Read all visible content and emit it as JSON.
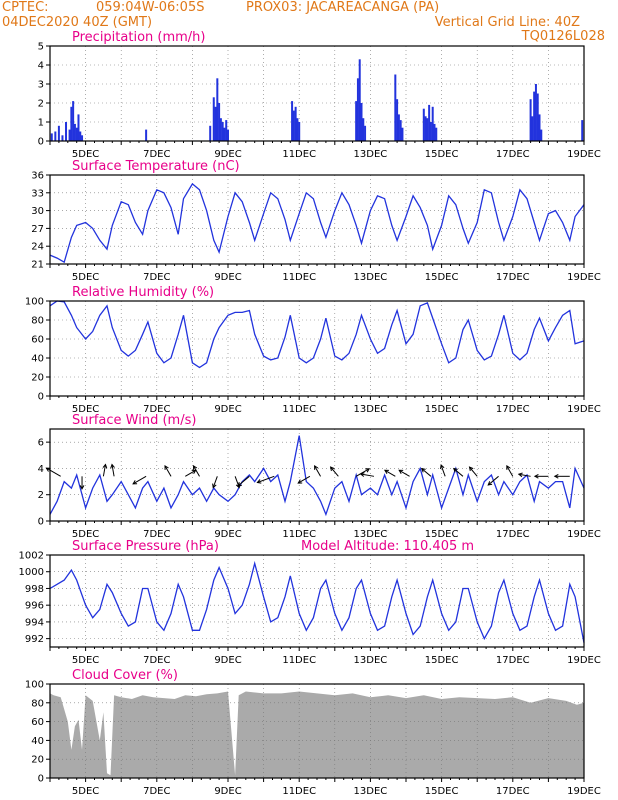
{
  "header": {
    "line1_left": "CPTEC:",
    "line1_coords": "059:04W-06:05S",
    "line1_station": "PROX03: JACAREACANGA (PA)",
    "line2_left": "04DEC2020 40Z (GMT)",
    "line2_right": "Vertical Grid Line: 40Z",
    "line3_right": "TQ0126L028"
  },
  "colors": {
    "header": "#e07818",
    "panel_title": "#e8008a",
    "series": "#2233dd",
    "cloud": "#aaaaaa"
  },
  "chart_data": [
    {
      "type": "bar",
      "title": "Precipitation (mm/h)",
      "ylim": [
        0,
        5
      ],
      "yticks": [
        "0",
        "1",
        "2",
        "3",
        "4",
        "5"
      ],
      "x_range_days": [
        4,
        19
      ],
      "xticks": [
        "5DEC",
        "7DEC",
        "9DEC",
        "11DEC",
        "13DEC",
        "15DEC",
        "17DEC",
        "19DEC"
      ],
      "grid": true,
      "x": [
        4.05,
        4.15,
        4.25,
        4.35,
        4.45,
        4.55,
        4.6,
        4.65,
        4.7,
        4.75,
        4.8,
        4.85,
        4.9,
        6.7,
        8.5,
        8.6,
        8.65,
        8.7,
        8.75,
        8.8,
        8.85,
        8.9,
        8.95,
        9.0,
        10.8,
        10.85,
        10.9,
        10.95,
        11.0,
        12.6,
        12.65,
        12.7,
        12.75,
        12.8,
        12.85,
        13.7,
        13.75,
        13.8,
        13.85,
        13.9,
        14.5,
        14.55,
        14.6,
        14.65,
        14.7,
        14.75,
        14.8,
        14.85,
        17.5,
        17.55,
        17.6,
        17.65,
        17.7,
        17.75,
        17.8,
        18.95
      ],
      "values": [
        0.4,
        0.5,
        0.8,
        0.3,
        1.0,
        0.6,
        1.8,
        2.1,
        0.9,
        0.7,
        1.4,
        0.5,
        0.3,
        0.6,
        0.8,
        2.3,
        1.8,
        3.3,
        2.0,
        1.2,
        1.0,
        0.7,
        1.1,
        0.6,
        2.1,
        1.6,
        1.8,
        1.2,
        1.0,
        2.1,
        3.3,
        4.3,
        2.0,
        1.2,
        0.8,
        3.5,
        2.2,
        1.4,
        1.1,
        0.7,
        1.7,
        1.3,
        1.2,
        1.9,
        1.0,
        1.8,
        0.9,
        0.7,
        2.2,
        1.3,
        2.6,
        3.0,
        2.5,
        1.4,
        0.6,
        1.1
      ]
    },
    {
      "type": "line",
      "title": "Surface Temperature (nC)",
      "ylim": [
        21,
        36
      ],
      "yticks": [
        "21",
        "24",
        "27",
        "30",
        "33",
        "36"
      ],
      "x_range_days": [
        4,
        19
      ],
      "xticks": [
        "5DEC",
        "7DEC",
        "9DEC",
        "11DEC",
        "13DEC",
        "15DEC",
        "17DEC",
        "19DEC"
      ],
      "grid": true,
      "x": [
        4.0,
        4.2,
        4.4,
        4.6,
        4.75,
        5.0,
        5.2,
        5.4,
        5.6,
        5.75,
        6.0,
        6.2,
        6.4,
        6.6,
        6.75,
        7.0,
        7.2,
        7.4,
        7.6,
        7.75,
        8.0,
        8.2,
        8.4,
        8.6,
        8.75,
        9.0,
        9.2,
        9.4,
        9.6,
        9.75,
        10.0,
        10.2,
        10.4,
        10.6,
        10.75,
        11.0,
        11.2,
        11.4,
        11.6,
        11.75,
        12.0,
        12.2,
        12.4,
        12.6,
        12.75,
        13.0,
        13.2,
        13.4,
        13.6,
        13.75,
        14.0,
        14.2,
        14.4,
        14.6,
        14.75,
        15.0,
        15.2,
        15.4,
        15.6,
        15.75,
        16.0,
        16.2,
        16.4,
        16.6,
        16.75,
        17.0,
        17.2,
        17.4,
        17.6,
        17.75,
        18.0,
        18.2,
        18.4,
        18.6,
        18.75,
        19.0
      ],
      "values": [
        22.5,
        22.0,
        21.3,
        25.5,
        27.5,
        28.0,
        27.0,
        25.0,
        23.5,
        27.5,
        31.5,
        31.0,
        28.0,
        26.0,
        30.0,
        33.5,
        33.0,
        30.5,
        26.0,
        32.0,
        34.5,
        33.5,
        30.0,
        25.0,
        23.0,
        29.0,
        33.0,
        31.5,
        28.0,
        25.0,
        29.5,
        33.0,
        32.0,
        28.5,
        25.0,
        29.5,
        33.0,
        32.0,
        28.0,
        25.5,
        30.0,
        33.0,
        31.0,
        27.5,
        24.5,
        30.0,
        32.5,
        32.0,
        27.5,
        25.0,
        29.0,
        32.5,
        30.5,
        27.5,
        23.5,
        27.5,
        32.5,
        31.0,
        27.0,
        24.5,
        28.0,
        33.5,
        33.0,
        28.0,
        25.0,
        29.0,
        33.5,
        32.0,
        28.0,
        25.0,
        29.5,
        30.0,
        28.0,
        25.0,
        29.0,
        31.0
      ]
    },
    {
      "type": "line",
      "title": "Relative Humidity (%)",
      "ylim": [
        0,
        100
      ],
      "yticks": [
        "0",
        "20",
        "40",
        "60",
        "80",
        "100"
      ],
      "x_range_days": [
        4,
        19
      ],
      "xticks": [
        "5DEC",
        "7DEC",
        "9DEC",
        "11DEC",
        "13DEC",
        "15DEC",
        "17DEC",
        "19DEC"
      ],
      "grid": true,
      "x": [
        4.0,
        4.2,
        4.4,
        4.6,
        4.75,
        5.0,
        5.2,
        5.4,
        5.6,
        5.75,
        6.0,
        6.2,
        6.4,
        6.6,
        6.75,
        7.0,
        7.2,
        7.4,
        7.6,
        7.75,
        8.0,
        8.2,
        8.4,
        8.6,
        8.75,
        9.0,
        9.2,
        9.4,
        9.6,
        9.75,
        10.0,
        10.2,
        10.4,
        10.6,
        10.75,
        11.0,
        11.2,
        11.4,
        11.6,
        11.75,
        12.0,
        12.2,
        12.4,
        12.6,
        12.75,
        13.0,
        13.2,
        13.4,
        13.6,
        13.75,
        14.0,
        14.2,
        14.4,
        14.6,
        14.75,
        15.0,
        15.2,
        15.4,
        15.6,
        15.75,
        16.0,
        16.2,
        16.4,
        16.6,
        16.75,
        17.0,
        17.2,
        17.4,
        17.6,
        17.75,
        18.0,
        18.2,
        18.4,
        18.6,
        18.75,
        19.0
      ],
      "values": [
        95,
        100,
        99,
        85,
        72,
        60,
        68,
        85,
        95,
        72,
        48,
        42,
        48,
        65,
        78,
        45,
        35,
        40,
        65,
        85,
        35,
        30,
        35,
        60,
        72,
        85,
        88,
        88,
        90,
        65,
        42,
        38,
        40,
        62,
        85,
        40,
        35,
        40,
        60,
        82,
        42,
        38,
        45,
        65,
        85,
        60,
        45,
        50,
        75,
        90,
        55,
        65,
        95,
        98,
        82,
        55,
        35,
        40,
        70,
        80,
        48,
        38,
        42,
        65,
        85,
        45,
        38,
        45,
        70,
        82,
        58,
        72,
        85,
        90,
        55,
        58
      ]
    },
    {
      "type": "line",
      "title": "Surface Wind (m/s)",
      "ylim": [
        0,
        7
      ],
      "yticks": [
        "0",
        "2",
        "4",
        "6"
      ],
      "x_range_days": [
        4,
        19
      ],
      "xticks": [
        "5DEC",
        "7DEC",
        "9DEC",
        "11DEC",
        "13DEC",
        "15DEC",
        "17DEC",
        "19DEC"
      ],
      "grid": true,
      "x": [
        4.0,
        4.2,
        4.4,
        4.6,
        4.75,
        5.0,
        5.2,
        5.4,
        5.6,
        5.75,
        6.0,
        6.2,
        6.4,
        6.6,
        6.75,
        7.0,
        7.2,
        7.4,
        7.6,
        7.75,
        8.0,
        8.2,
        8.4,
        8.6,
        8.75,
        9.0,
        9.2,
        9.4,
        9.6,
        9.75,
        10.0,
        10.2,
        10.4,
        10.6,
        10.75,
        11.0,
        11.2,
        11.4,
        11.6,
        11.75,
        12.0,
        12.2,
        12.4,
        12.6,
        12.75,
        13.0,
        13.2,
        13.4,
        13.6,
        13.75,
        14.0,
        14.2,
        14.4,
        14.6,
        14.75,
        15.0,
        15.2,
        15.4,
        15.6,
        15.75,
        16.0,
        16.2,
        16.4,
        16.6,
        16.75,
        17.0,
        17.2,
        17.4,
        17.6,
        17.75,
        18.0,
        18.2,
        18.4,
        18.6,
        18.75,
        19.0
      ],
      "values": [
        0.5,
        1.5,
        3.0,
        2.5,
        3.5,
        1.0,
        2.5,
        3.5,
        1.5,
        2.0,
        3.0,
        2.0,
        1.0,
        2.5,
        3.0,
        1.5,
        2.5,
        1.0,
        2.0,
        3.0,
        2.0,
        2.5,
        1.5,
        2.5,
        2.0,
        1.5,
        2.0,
        3.0,
        3.5,
        3.0,
        4.0,
        3.0,
        3.5,
        1.5,
        3.0,
        6.5,
        3.0,
        2.5,
        1.5,
        0.5,
        2.5,
        3.0,
        1.5,
        3.5,
        2.0,
        2.5,
        2.0,
        3.5,
        2.0,
        3.0,
        1.0,
        3.0,
        4.0,
        2.0,
        3.5,
        1.0,
        2.5,
        4.0,
        2.0,
        3.5,
        1.5,
        3.0,
        3.5,
        2.0,
        3.0,
        2.0,
        3.0,
        3.5,
        1.5,
        3.0,
        2.5,
        3.0,
        3.0,
        1.0,
        4.0,
        2.5
      ],
      "arrows": [
        {
          "day": 4.3,
          "dir_deg": 300,
          "speed": 3.5
        },
        {
          "day": 4.9,
          "dir_deg": 180,
          "speed": 2.2
        },
        {
          "day": 5.5,
          "dir_deg": 10,
          "speed": 2.0
        },
        {
          "day": 5.8,
          "dir_deg": 350,
          "speed": 2.0
        },
        {
          "day": 6.7,
          "dir_deg": 240,
          "speed": 3.0
        },
        {
          "day": 7.4,
          "dir_deg": 330,
          "speed": 2.0
        },
        {
          "day": 7.8,
          "dir_deg": 60,
          "speed": 2.0
        },
        {
          "day": 8.2,
          "dir_deg": 330,
          "speed": 2.0
        },
        {
          "day": 8.7,
          "dir_deg": 200,
          "speed": 2.0
        },
        {
          "day": 9.2,
          "dir_deg": 160,
          "speed": 2.0
        },
        {
          "day": 9.6,
          "dir_deg": 230,
          "speed": 3.0
        },
        {
          "day": 10.3,
          "dir_deg": 250,
          "speed": 4.0
        },
        {
          "day": 11.3,
          "dir_deg": 240,
          "speed": 2.5
        },
        {
          "day": 11.6,
          "dir_deg": 330,
          "speed": 2.0
        },
        {
          "day": 12.1,
          "dir_deg": 320,
          "speed": 2.0
        },
        {
          "day": 12.6,
          "dir_deg": 60,
          "speed": 3.0
        },
        {
          "day": 13.1,
          "dir_deg": 280,
          "speed": 2.5
        },
        {
          "day": 13.7,
          "dir_deg": 300,
          "speed": 2.0
        },
        {
          "day": 14.1,
          "dir_deg": 300,
          "speed": 2.0
        },
        {
          "day": 14.7,
          "dir_deg": 310,
          "speed": 2.0
        },
        {
          "day": 15.1,
          "dir_deg": 340,
          "speed": 2.0
        },
        {
          "day": 15.6,
          "dir_deg": 310,
          "speed": 2.0
        },
        {
          "day": 16.0,
          "dir_deg": 320,
          "speed": 2.0
        },
        {
          "day": 16.6,
          "dir_deg": 230,
          "speed": 2.5
        },
        {
          "day": 17.0,
          "dir_deg": 330,
          "speed": 2.0
        },
        {
          "day": 17.5,
          "dir_deg": 280,
          "speed": 2.0
        },
        {
          "day": 18.0,
          "dir_deg": 270,
          "speed": 2.5
        },
        {
          "day": 18.6,
          "dir_deg": 270,
          "speed": 3.0
        }
      ]
    },
    {
      "type": "line",
      "title": "Surface Pressure (hPa)",
      "annotation": "Model Altitude: 110.405 m",
      "ylim": [
        991,
        1002
      ],
      "yticks": [
        "992",
        "994",
        "996",
        "998",
        "1000",
        "1002"
      ],
      "x_range_days": [
        4,
        19
      ],
      "xticks": [
        "5DEC",
        "7DEC",
        "9DEC",
        "11DEC",
        "13DEC",
        "15DEC",
        "17DEC",
        "19DEC"
      ],
      "grid": true,
      "x": [
        4.0,
        4.2,
        4.4,
        4.6,
        4.75,
        5.0,
        5.2,
        5.4,
        5.6,
        5.75,
        6.0,
        6.2,
        6.4,
        6.6,
        6.75,
        7.0,
        7.2,
        7.4,
        7.6,
        7.75,
        8.0,
        8.2,
        8.4,
        8.6,
        8.75,
        9.0,
        9.2,
        9.4,
        9.6,
        9.75,
        10.0,
        10.2,
        10.4,
        10.6,
        10.75,
        11.0,
        11.2,
        11.4,
        11.6,
        11.75,
        12.0,
        12.2,
        12.4,
        12.6,
        12.75,
        13.0,
        13.2,
        13.4,
        13.6,
        13.75,
        14.0,
        14.2,
        14.4,
        14.6,
        14.75,
        15.0,
        15.2,
        15.4,
        15.6,
        15.75,
        16.0,
        16.2,
        16.4,
        16.6,
        16.75,
        17.0,
        17.2,
        17.4,
        17.6,
        17.75,
        18.0,
        18.2,
        18.4,
        18.6,
        18.75,
        19.0
      ],
      "values": [
        998.0,
        998.5,
        999.0,
        1000.2,
        999.0,
        996.0,
        994.5,
        995.5,
        998.5,
        997.5,
        995.0,
        993.5,
        994.0,
        998.0,
        998.0,
        994.0,
        993.0,
        995.0,
        998.5,
        997.0,
        993.0,
        993.0,
        995.5,
        999.0,
        1000.5,
        998.0,
        995.0,
        996.0,
        998.5,
        1001.0,
        997.0,
        994.0,
        994.5,
        997.0,
        999.5,
        995.0,
        993.0,
        994.5,
        998.0,
        999.0,
        995.0,
        993.0,
        994.5,
        998.0,
        999.0,
        995.0,
        993.0,
        993.5,
        997.0,
        999.0,
        995.0,
        992.5,
        993.5,
        997.0,
        999.0,
        995.0,
        993.0,
        994.0,
        998.0,
        998.0,
        994.0,
        992.0,
        993.5,
        997.5,
        999.0,
        995.0,
        993.0,
        993.5,
        997.0,
        999.0,
        995.0,
        993.0,
        993.5,
        998.5,
        997.0,
        991.5
      ]
    },
    {
      "type": "area",
      "title": "Cloud Cover (%)",
      "ylim": [
        0,
        100
      ],
      "yticks": [
        "0",
        "20",
        "40",
        "60",
        "80",
        "100"
      ],
      "x_range_days": [
        4,
        19
      ],
      "xticks": [
        "5DEC",
        "7DEC",
        "9DEC",
        "11DEC",
        "13DEC",
        "15DEC",
        "17DEC",
        "19DEC"
      ],
      "grid": true,
      "x": [
        4.0,
        4.1,
        4.3,
        4.5,
        4.6,
        4.7,
        4.8,
        4.9,
        5.0,
        5.1,
        5.2,
        5.4,
        5.5,
        5.6,
        5.7,
        5.8,
        6.0,
        6.3,
        6.6,
        6.9,
        7.2,
        7.5,
        7.8,
        8.1,
        8.4,
        8.7,
        9.0,
        9.2,
        9.3,
        9.5,
        10.0,
        10.5,
        11.0,
        11.5,
        12.0,
        12.5,
        13.0,
        13.5,
        14.0,
        14.5,
        15.0,
        15.5,
        16.0,
        16.5,
        17.0,
        17.5,
        18.0,
        18.5,
        18.8,
        19.0
      ],
      "values": [
        90,
        88,
        86,
        60,
        30,
        55,
        62,
        30,
        88,
        85,
        82,
        40,
        70,
        5,
        3,
        88,
        86,
        84,
        88,
        86,
        85,
        84,
        88,
        87,
        89,
        90,
        92,
        3,
        88,
        92,
        90,
        90,
        92,
        90,
        88,
        90,
        86,
        88,
        85,
        88,
        84,
        86,
        85,
        84,
        86,
        80,
        85,
        82,
        78,
        80
      ]
    }
  ]
}
